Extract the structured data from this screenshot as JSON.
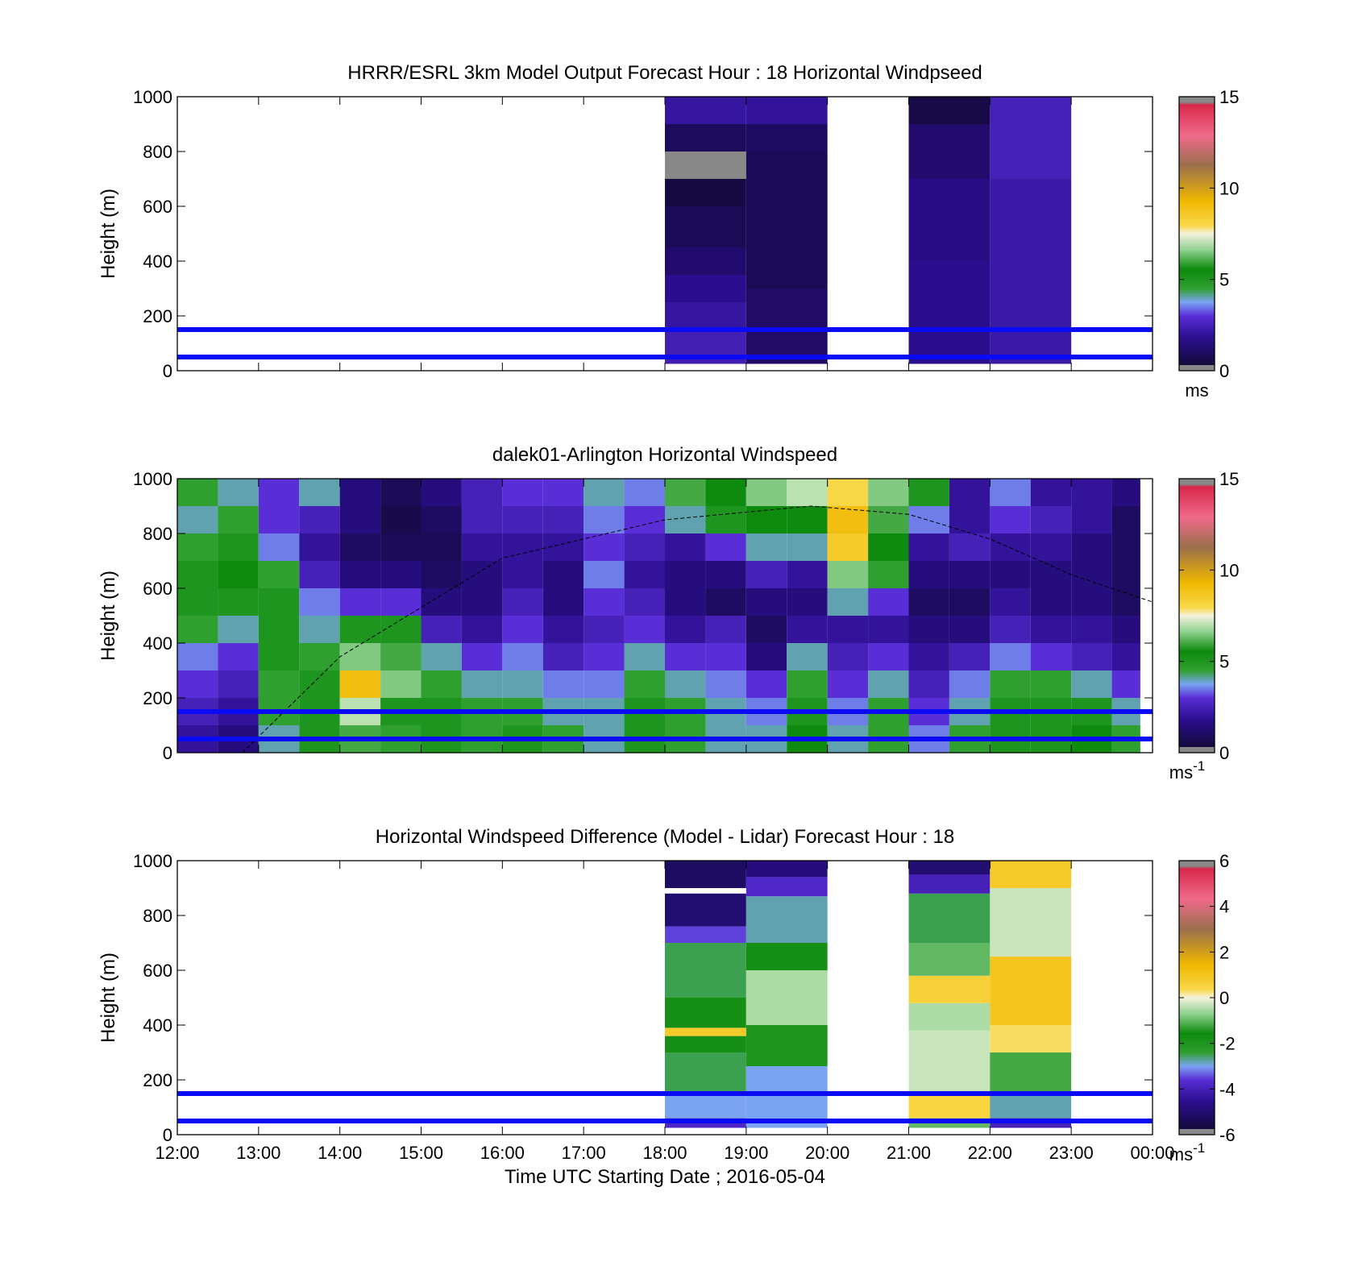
{
  "chart_data": [
    {
      "type": "heatmap",
      "title": "HRRR/ESRL 3km Model Output   Forecast Hour : 18 Horizontal Windpseed",
      "ylabel": "Height (m)",
      "ylim": [
        0,
        1000
      ],
      "yticks": [
        "0",
        "200",
        "400",
        "600",
        "800",
        "1000"
      ],
      "xlim_hours": [
        12,
        24
      ],
      "colorbar": {
        "range": [
          0,
          15
        ],
        "ticks": [
          "0",
          "5",
          "10",
          "15"
        ],
        "unit": "ms",
        "unit_exp": ""
      },
      "reference_lines_m": [
        50,
        150
      ],
      "columns": [
        {
          "start_hour": 18,
          "end_hour": 19,
          "levels": [
            {
              "bottom": 25,
              "top": 150,
              "value": 2.4
            },
            {
              "bottom": 150,
              "top": 250,
              "value": 2.1
            },
            {
              "bottom": 250,
              "top": 350,
              "value": 1.8
            },
            {
              "bottom": 350,
              "top": 450,
              "value": 1.2
            },
            {
              "bottom": 450,
              "top": 600,
              "value": 0.8
            },
            {
              "bottom": 600,
              "top": 700,
              "value": 0.4
            },
            {
              "bottom": 700,
              "top": 800,
              "value": -1
            },
            {
              "bottom": 800,
              "top": 900,
              "value": 0.9
            },
            {
              "bottom": 900,
              "top": 1000,
              "value": 2.1
            }
          ]
        },
        {
          "start_hour": 19,
          "end_hour": 20,
          "levels": [
            {
              "bottom": 25,
              "top": 300,
              "value": 1.1
            },
            {
              "bottom": 300,
              "top": 800,
              "value": 0.8
            },
            {
              "bottom": 800,
              "top": 900,
              "value": 1.0
            },
            {
              "bottom": 900,
              "top": 1000,
              "value": 2.0
            }
          ]
        },
        {
          "start_hour": 21,
          "end_hour": 22,
          "levels": [
            {
              "bottom": 25,
              "top": 400,
              "value": 1.8
            },
            {
              "bottom": 400,
              "top": 700,
              "value": 1.6
            },
            {
              "bottom": 700,
              "top": 900,
              "value": 1.2
            },
            {
              "bottom": 900,
              "top": 1000,
              "value": 0.5
            }
          ]
        },
        {
          "start_hour": 22,
          "end_hour": 23,
          "levels": [
            {
              "bottom": 25,
              "top": 700,
              "value": 2.2
            },
            {
              "bottom": 700,
              "top": 1000,
              "value": 2.5
            }
          ]
        }
      ]
    },
    {
      "type": "heatmap",
      "title": "dalek01-Arlington  Horizontal Windspeed",
      "ylabel": "Height (m)",
      "ylim": [
        0,
        1000
      ],
      "yticks": [
        "0",
        "200",
        "400",
        "600",
        "800",
        "1000"
      ],
      "xlim_hours": [
        12,
        24
      ],
      "data_end_hour": 23.85,
      "colorbar": {
        "range": [
          0,
          15
        ],
        "ticks": [
          "0",
          "5",
          "10",
          "15"
        ],
        "unit": "ms",
        "unit_exp": "-1"
      },
      "reference_lines_m": [
        50,
        150
      ],
      "boundary_layer_curve": [
        [
          12.8,
          0
        ],
        [
          14,
          350
        ],
        [
          16,
          710
        ],
        [
          18,
          850
        ],
        [
          19.8,
          900
        ],
        [
          21,
          870
        ],
        [
          22,
          780
        ],
        [
          23,
          650
        ],
        [
          24,
          550
        ]
      ],
      "profile_hours": [
        12.25,
        12.75,
        13.25,
        13.75,
        14.25,
        14.75,
        15.25,
        15.75,
        16.25,
        16.75,
        17.25,
        17.75,
        18.25,
        18.75,
        19.25,
        19.75,
        20.25,
        20.75,
        21.25,
        21.75,
        22.25,
        22.75,
        23.25,
        23.75
      ],
      "profile_heights_m": [
        50,
        150,
        250,
        350,
        450,
        550,
        650,
        750,
        850,
        950
      ],
      "profile_values": [
        [
          2.0,
          2.5,
          3.0,
          3.5,
          4.5,
          5.0,
          5.0,
          4.5,
          4.0,
          4.5
        ],
        [
          1.5,
          2.0,
          2.5,
          3.0,
          4.0,
          5.0,
          5.5,
          5.0,
          4.5,
          4.0
        ],
        [
          4.0,
          4.5,
          4.5,
          5.0,
          5.0,
          5.0,
          4.5,
          3.5,
          3.0,
          3.0
        ],
        [
          5.0,
          5.0,
          5.0,
          4.5,
          4.0,
          3.5,
          2.5,
          2.0,
          2.5,
          4.0
        ],
        [
          6.0,
          7.0,
          9.0,
          6.5,
          5.0,
          3.0,
          1.5,
          1.0,
          1.5,
          1.5
        ],
        [
          4.5,
          5.0,
          6.5,
          6.0,
          5.0,
          3.0,
          1.5,
          0.8,
          0.6,
          0.8
        ],
        [
          5.0,
          5.0,
          4.5,
          4.0,
          2.5,
          1.5,
          1.0,
          0.8,
          1.0,
          1.5
        ],
        [
          4.5,
          4.5,
          4.0,
          3.0,
          2.0,
          1.5,
          1.5,
          2.0,
          2.5,
          2.5
        ],
        [
          5.0,
          4.5,
          4.0,
          3.5,
          3.0,
          2.5,
          2.0,
          2.0,
          2.5,
          3.0
        ],
        [
          4.5,
          4.0,
          3.5,
          2.5,
          2.0,
          1.5,
          1.5,
          2.0,
          2.5,
          3.0
        ],
        [
          4.0,
          4.0,
          3.5,
          3.0,
          2.5,
          3.0,
          3.5,
          3.0,
          3.5,
          4.0
        ],
        [
          5.0,
          5.0,
          4.5,
          4.0,
          3.0,
          2.5,
          2.0,
          2.5,
          3.0,
          3.5
        ],
        [
          4.5,
          4.5,
          4.0,
          3.0,
          2.0,
          1.5,
          1.5,
          2.0,
          4.0,
          6.0
        ],
        [
          4.0,
          4.0,
          3.5,
          3.0,
          2.5,
          1.0,
          1.5,
          3.0,
          5.0,
          5.5
        ],
        [
          4.0,
          3.5,
          3.0,
          1.5,
          1.0,
          1.5,
          2.5,
          4.0,
          5.5,
          6.5
        ],
        [
          5.5,
          5.0,
          4.5,
          4.0,
          2.0,
          1.5,
          2.0,
          4.0,
          5.5,
          7.0
        ],
        [
          4.0,
          3.5,
          3.0,
          2.5,
          2.0,
          4.0,
          6.5,
          8.5,
          9.0,
          8.0
        ],
        [
          4.5,
          4.5,
          4.0,
          3.0,
          2.0,
          3.0,
          4.5,
          5.5,
          6.0,
          6.5
        ],
        [
          3.5,
          3.0,
          2.5,
          2.0,
          1.5,
          1.0,
          1.5,
          2.0,
          3.5,
          5.0
        ],
        [
          4.5,
          4.0,
          3.5,
          2.5,
          1.5,
          1.0,
          1.5,
          2.5,
          2.0,
          2.0
        ],
        [
          5.0,
          5.0,
          4.5,
          3.5,
          2.5,
          2.0,
          1.5,
          2.0,
          3.0,
          3.5
        ],
        [
          5.0,
          5.0,
          4.5,
          3.0,
          2.0,
          1.5,
          1.5,
          2.0,
          2.5,
          2.0
        ],
        [
          5.5,
          5.0,
          4.0,
          2.5,
          2.0,
          1.5,
          1.5,
          1.5,
          2.0,
          2.0
        ],
        [
          4.5,
          4.0,
          3.0,
          2.0,
          1.5,
          1.0,
          1.0,
          1.0,
          1.0,
          1.5
        ]
      ]
    },
    {
      "type": "heatmap",
      "title": "Horizontal Windspeed Difference (Model - Lidar) Forecast Hour : 18",
      "ylabel": "Height (m)",
      "xlabel": "Time UTC  Starting Date ; 2016-05-04",
      "ylim": [
        0,
        1000
      ],
      "yticks": [
        "0",
        "200",
        "400",
        "600",
        "800",
        "1000"
      ],
      "xlim_hours": [
        12,
        24
      ],
      "xticks": [
        "12:00",
        "13:00",
        "14:00",
        "15:00",
        "16:00",
        "17:00",
        "18:00",
        "19:00",
        "20:00",
        "21:00",
        "22:00",
        "23:00",
        "00:00"
      ],
      "colorbar": {
        "range": [
          -6,
          6
        ],
        "ticks": [
          "-6",
          "-4",
          "-2",
          "0",
          "2",
          "4",
          "6"
        ],
        "unit": "ms",
        "unit_exp": "-1"
      },
      "reference_lines_m": [
        50,
        150
      ],
      "columns": [
        {
          "start_hour": 18,
          "end_hour": 19,
          "levels": [
            {
              "bottom": 25,
              "top": 60,
              "value": -3.8
            },
            {
              "bottom": 60,
              "top": 150,
              "value": -3.0
            },
            {
              "bottom": 150,
              "top": 300,
              "value": -2.5
            },
            {
              "bottom": 300,
              "top": 360,
              "value": -1.5
            },
            {
              "bottom": 360,
              "top": 390,
              "value": 0.8
            },
            {
              "bottom": 390,
              "top": 500,
              "value": -1.5
            },
            {
              "bottom": 500,
              "top": 700,
              "value": -2.5
            },
            {
              "bottom": 700,
              "top": 760,
              "value": -3.5
            },
            {
              "bottom": 760,
              "top": 880,
              "value": -5.0
            },
            {
              "bottom": 900,
              "top": 1000,
              "value": -5.2
            }
          ]
        },
        {
          "start_hour": 19,
          "end_hour": 20,
          "levels": [
            {
              "bottom": 25,
              "top": 250,
              "value": -3.0
            },
            {
              "bottom": 250,
              "top": 400,
              "value": -2.0
            },
            {
              "bottom": 400,
              "top": 600,
              "value": -0.5
            },
            {
              "bottom": 600,
              "top": 700,
              "value": -1.5
            },
            {
              "bottom": 700,
              "top": 870,
              "value": -2.8
            },
            {
              "bottom": 870,
              "top": 940,
              "value": -3.8
            },
            {
              "bottom": 940,
              "top": 1000,
              "value": -4.8
            }
          ]
        },
        {
          "start_hour": 21,
          "end_hour": 22,
          "levels": [
            {
              "bottom": 25,
              "top": 60,
              "value": -1.0
            },
            {
              "bottom": 60,
              "top": 150,
              "value": 0.5
            },
            {
              "bottom": 150,
              "top": 380,
              "value": -0.3
            },
            {
              "bottom": 380,
              "top": 480,
              "value": -0.5
            },
            {
              "bottom": 480,
              "top": 580,
              "value": 0.6
            },
            {
              "bottom": 580,
              "top": 700,
              "value": -1.0
            },
            {
              "bottom": 700,
              "top": 880,
              "value": -2.5
            },
            {
              "bottom": 880,
              "top": 950,
              "value": -4.0
            },
            {
              "bottom": 950,
              "top": 1000,
              "value": -5.0
            }
          ]
        },
        {
          "start_hour": 22,
          "end_hour": 23,
          "levels": [
            {
              "bottom": 25,
              "top": 60,
              "value": -4.0
            },
            {
              "bottom": 60,
              "top": 150,
              "value": -2.8
            },
            {
              "bottom": 150,
              "top": 300,
              "value": -1.2
            },
            {
              "bottom": 300,
              "top": 400,
              "value": 0.3
            },
            {
              "bottom": 400,
              "top": 650,
              "value": 1.0
            },
            {
              "bottom": 650,
              "top": 900,
              "value": -0.3
            },
            {
              "bottom": 900,
              "top": 1000,
              "value": 0.8
            }
          ]
        }
      ]
    }
  ]
}
